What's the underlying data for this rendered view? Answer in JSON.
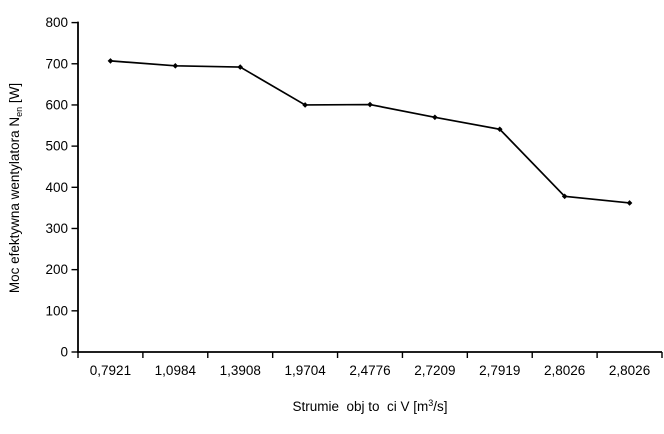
{
  "chart_data": {
    "type": "line",
    "title": "",
    "categories": [
      "0,7921",
      "1,0984",
      "1,3908",
      "1,9704",
      "2,4776",
      "2,7209",
      "2,7919",
      "2,8026",
      "2,8026"
    ],
    "values": [
      707,
      695,
      692,
      600,
      601,
      570,
      541,
      378,
      362
    ],
    "yticks": [
      0,
      100,
      200,
      300,
      400,
      500,
      600,
      700,
      800
    ],
    "ylim": [
      0,
      800
    ],
    "grid": false,
    "legend": "none",
    "line_color": "#000000",
    "marker": "diamond",
    "background_color": "#ffffff",
    "xlabel_text": "Strumie  obj to  ci V [m3/s]",
    "ylabel_text": "Moc efektywna wentylatora Nen [W]",
    "xlabel_parts": {
      "prefix": "Strumie  obj to  ci V [m",
      "sup": "3",
      "suffix": "/s]"
    },
    "ylabel_parts": {
      "prefix": "Moc efektywna wentylatora N",
      "sub": "en",
      "suffix": " [W]"
    }
  }
}
